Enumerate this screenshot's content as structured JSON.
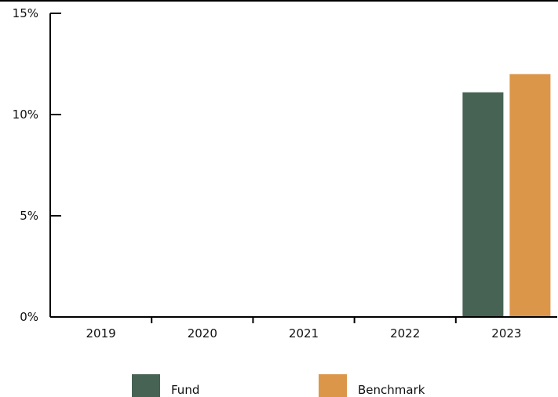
{
  "chart_data": {
    "type": "bar",
    "categories": [
      "2019",
      "2020",
      "2021",
      "2022",
      "2023"
    ],
    "series": [
      {
        "name": "Fund",
        "color": "#476354",
        "values": [
          0,
          0,
          0,
          0,
          11.1
        ]
      },
      {
        "name": "Benchmark",
        "color": "#dc964a",
        "values": [
          0,
          0,
          0,
          0,
          12.0
        ]
      }
    ],
    "ylim": [
      0,
      15
    ],
    "yticks": [
      0,
      5,
      10,
      15
    ],
    "ytick_labels": [
      "0%",
      "5%",
      "10%",
      "15%"
    ],
    "grid": false,
    "legend_position": "bottom"
  }
}
